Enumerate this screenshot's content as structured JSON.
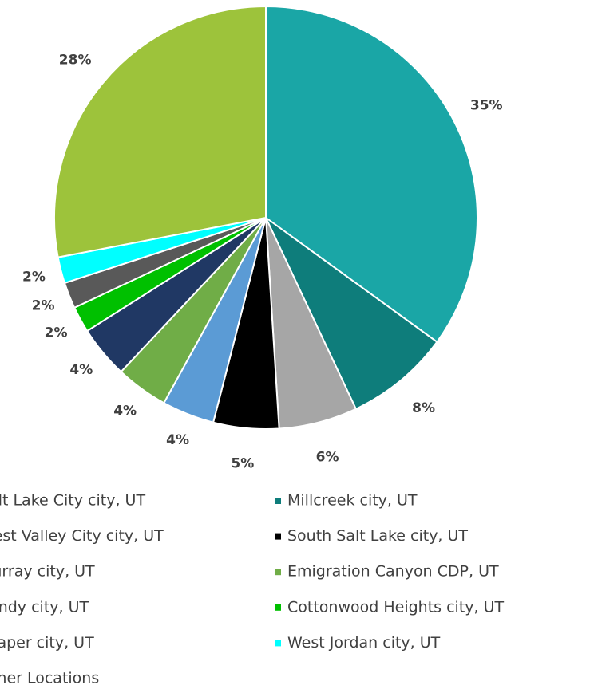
{
  "chart_data": {
    "type": "pie",
    "categories": [
      "Salt Lake City city, UT",
      "Millcreek city, UT",
      "West Valley City city, UT",
      "South Salt Lake city, UT",
      "Murray city, UT",
      "Emigration Canyon CDP, UT",
      "Sandy city, UT",
      "Cottonwood Heights city, UT",
      "Draper city, UT",
      "West Jordan city, UT",
      "Other Locations"
    ],
    "values": [
      35,
      8,
      6,
      5,
      4,
      4,
      4,
      2,
      2,
      2,
      28
    ],
    "value_labels": [
      "35%",
      "8%",
      "6%",
      "5%",
      "4%",
      "4%",
      "4%",
      "2%",
      "2%",
      "2%",
      "28%"
    ],
    "colors": [
      "#1aa6a6",
      "#0e7d7b",
      "#a6a6a6",
      "#000000",
      "#5b9bd5",
      "#70ad47",
      "#203864",
      "#00c000",
      "#595959",
      "#00ffff",
      "#9dc33b"
    ]
  }
}
